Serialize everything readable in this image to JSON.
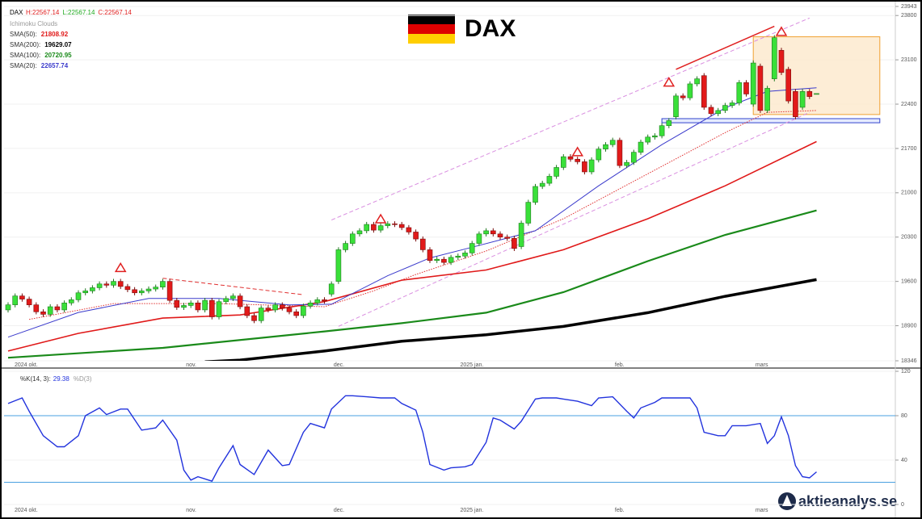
{
  "chart_data": [
    {
      "type": "candlestick",
      "title": "DAX",
      "symbol": "DAX",
      "header": [
        "H:22567.14",
        "L:22567.14",
        "C:22567.14"
      ],
      "header_colors": [
        "#e02020",
        "#22aa22",
        "#e02020"
      ],
      "up_color": "#39e039",
      "down_color": "#e21a1a",
      "categories": [
        "2024 okt.",
        null,
        null,
        null,
        null,
        null,
        null,
        null,
        null,
        null,
        null,
        null,
        null,
        null,
        null,
        null,
        null,
        null,
        null,
        null,
        null,
        null,
        null,
        null,
        null,
        null,
        "nov.",
        null,
        null,
        null,
        null,
        null,
        null,
        null,
        null,
        null,
        null,
        null,
        null,
        null,
        null,
        null,
        null,
        null,
        null,
        null,
        null,
        "dec.",
        null,
        null,
        null,
        null,
        null,
        null,
        null,
        null,
        null,
        null,
        null,
        null,
        null,
        null,
        null,
        null,
        null,
        "2025 jan.",
        null,
        null,
        null,
        null,
        null,
        null,
        null,
        null,
        null,
        null,
        null,
        null,
        null,
        null,
        null,
        null,
        null,
        null,
        null,
        null,
        null,
        "feb.",
        null,
        null,
        null,
        null,
        null,
        null,
        null,
        null,
        null,
        null,
        null,
        null,
        null,
        null,
        null,
        null,
        null,
        null,
        null,
        "mars",
        null,
        null,
        null,
        null,
        null,
        null,
        null,
        null
      ],
      "open": [
        19150,
        19230,
        19370,
        19320,
        19230,
        19120,
        19080,
        19200,
        19150,
        19260,
        19310,
        19420,
        19450,
        19500,
        19560,
        19540,
        19600,
        19520,
        19470,
        19420,
        19450,
        19480,
        19510,
        19600,
        19300,
        19190,
        19220,
        19260,
        19150,
        19300,
        19040,
        19280,
        19330,
        19370,
        19200,
        19060,
        18980,
        19180,
        19150,
        19230,
        19180,
        19120,
        19060,
        19210,
        19260,
        19310,
        19400,
        19600,
        20100,
        20200,
        20350,
        20400,
        20500,
        20410,
        20480,
        20510,
        20500,
        20450,
        20380,
        20270,
        20100,
        19930,
        19950,
        19900,
        19980,
        20000,
        20050,
        20200,
        20350,
        20400,
        20350,
        20300,
        20280,
        20150,
        20520,
        20850,
        21100,
        21150,
        21260,
        21400,
        21570,
        21530,
        21490,
        21330,
        21520,
        21690,
        21760,
        21830,
        21430,
        21480,
        21640,
        21800,
        21880,
        21900,
        22060,
        22200,
        22530,
        22500,
        22720,
        22850,
        22350,
        22250,
        22300,
        22380,
        22420,
        22740,
        22400,
        23000,
        22300,
        22800,
        23250,
        22950,
        22600,
        22350,
        22600,
        22567.14
      ],
      "high": [
        19270,
        19410,
        19410,
        19360,
        19270,
        19160,
        19240,
        19240,
        19300,
        19350,
        19460,
        19490,
        19540,
        19600,
        19600,
        19640,
        19640,
        19560,
        19510,
        19490,
        19520,
        19550,
        19640,
        19640,
        19340,
        19260,
        19300,
        19300,
        19340,
        19340,
        19320,
        19370,
        19410,
        19410,
        19240,
        19100,
        19220,
        19220,
        19270,
        19270,
        19220,
        19160,
        19250,
        19300,
        19350,
        19350,
        19600,
        20140,
        20240,
        20390,
        20440,
        20540,
        20540,
        20520,
        20550,
        20550,
        20540,
        20490,
        20420,
        20310,
        20140,
        19990,
        19990,
        20020,
        20040,
        20090,
        20240,
        20390,
        20440,
        20440,
        20390,
        20340,
        20320,
        20560,
        20890,
        21140,
        21190,
        21300,
        21440,
        21610,
        21610,
        21570,
        21530,
        21560,
        21730,
        21800,
        21870,
        21870,
        21520,
        21680,
        21840,
        21920,
        21940,
        22100,
        22180,
        22570,
        22570,
        22760,
        22840,
        22890,
        22390,
        22340,
        22420,
        22460,
        22780,
        22780,
        23090,
        23040,
        22690,
        23490,
        23290,
        22990,
        22640,
        22640,
        22640,
        22567.14
      ],
      "low": [
        19110,
        19190,
        19280,
        19190,
        19080,
        19040,
        19040,
        19110,
        19110,
        19220,
        19270,
        19380,
        19410,
        19460,
        19500,
        19500,
        19480,
        19430,
        19380,
        19380,
        19410,
        19440,
        19470,
        19260,
        19150,
        19150,
        19180,
        19110,
        19110,
        19000,
        19000,
        19240,
        19290,
        19160,
        19020,
        18940,
        18940,
        19110,
        19110,
        19140,
        19080,
        19020,
        19020,
        19170,
        19220,
        19250,
        19360,
        19560,
        20060,
        20160,
        20310,
        20360,
        20370,
        20370,
        20440,
        20460,
        20410,
        20340,
        20230,
        20060,
        19890,
        19890,
        19860,
        19860,
        19940,
        19960,
        20010,
        20160,
        20310,
        20310,
        20260,
        20240,
        20080,
        20110,
        20480,
        20810,
        21060,
        21110,
        21220,
        21360,
        21490,
        21450,
        21290,
        21290,
        21480,
        21650,
        21720,
        21390,
        21390,
        21440,
        21600,
        21760,
        21840,
        21860,
        22020,
        22160,
        22460,
        22460,
        22680,
        22310,
        22210,
        22210,
        22260,
        22340,
        22380,
        22520,
        22360,
        22260,
        22260,
        22760,
        22860,
        22410,
        22160,
        22310,
        22480,
        22567.14
      ],
      "close": [
        19230,
        19370,
        19320,
        19230,
        19120,
        19080,
        19200,
        19150,
        19260,
        19310,
        19420,
        19450,
        19500,
        19560,
        19540,
        19600,
        19520,
        19470,
        19420,
        19450,
        19480,
        19510,
        19600,
        19300,
        19190,
        19220,
        19260,
        19150,
        19300,
        19040,
        19280,
        19330,
        19370,
        19200,
        19060,
        18980,
        19180,
        19150,
        19230,
        19180,
        19120,
        19060,
        19210,
        19260,
        19310,
        19290,
        19560,
        20100,
        20200,
        20350,
        20400,
        20500,
        20410,
        20480,
        20510,
        20500,
        20450,
        20380,
        20270,
        20100,
        19930,
        19950,
        19900,
        19980,
        20000,
        20050,
        20200,
        20350,
        20400,
        20350,
        20300,
        20280,
        20120,
        20520,
        20850,
        21100,
        21150,
        21260,
        21400,
        21570,
        21530,
        21490,
        21330,
        21520,
        21690,
        21760,
        21830,
        21430,
        21480,
        21640,
        21800,
        21880,
        21900,
        22060,
        22140,
        22530,
        22500,
        22720,
        22800,
        22350,
        22250,
        22300,
        22380,
        22420,
        22740,
        22560,
        23050,
        22300,
        22650,
        23450,
        22900,
        22450,
        22200,
        22600,
        22520,
        22567.14
      ],
      "lines": [
        {
          "name": "Ichimoku Clouds",
          "color": "#e03030",
          "dotted": true,
          "width": 1,
          "x": [
            3,
            15,
            30,
            45,
            52,
            58,
            68,
            79,
            91,
            102,
            108,
            115
          ],
          "values": [
            19000,
            19250,
            19250,
            19200,
            19450,
            19710,
            20080,
            20590,
            21300,
            21950,
            22270,
            22300
          ]
        },
        {
          "name": "SMA(50):",
          "last": 21808.92,
          "color": "#e01919",
          "dotted": false,
          "width": 1.6,
          "x": [
            0,
            10,
            22,
            33,
            45,
            56,
            68,
            79,
            91,
            102,
            115
          ],
          "values": [
            18500,
            18780,
            19020,
            19070,
            19280,
            19620,
            19780,
            20100,
            20590,
            21110,
            21808.92
          ]
        },
        {
          "name": "SMA(200):",
          "last": 19629.07,
          "color": "#000000",
          "dotted": false,
          "width": 3.5,
          "x": [
            28,
            33,
            45,
            56,
            68,
            79,
            91,
            102,
            115
          ],
          "values": [
            18330,
            18357,
            18500,
            18655,
            18758,
            18889,
            19106,
            19365,
            19629.07
          ]
        },
        {
          "name": "SMA(100):",
          "last": 20720.95,
          "color": "#1a8a1a",
          "dotted": false,
          "width": 2.2,
          "x": [
            0,
            22,
            45,
            56,
            68,
            79,
            91,
            102,
            115
          ],
          "values": [
            18395,
            18550,
            18810,
            18940,
            19106,
            19430,
            19920,
            20335,
            20720.95
          ]
        },
        {
          "name": "SMA(20):",
          "last": 22657.74,
          "color": "#3b3bcc",
          "dotted": false,
          "width": 1,
          "x": [
            0,
            10,
            20,
            30,
            40,
            46,
            54,
            60,
            66,
            75,
            84,
            93,
            102,
            108,
            115
          ],
          "values": [
            18720,
            19110,
            19330,
            19330,
            19230,
            19240,
            19690,
            19970,
            20140,
            20400,
            21110,
            21760,
            22340,
            22600,
            22657.74
          ]
        }
      ],
      "signals": {
        "color": "#e02020",
        "x": [
          16,
          53,
          81,
          94,
          110
        ],
        "values": [
          19820,
          20590,
          21650,
          22750,
          23550
        ]
      },
      "trendlines": [
        {
          "color": "#e03030",
          "dash": true,
          "x": [
            22,
            42
          ],
          "values": [
            19650,
            19390
          ]
        },
        {
          "color": "#d98ee0",
          "dash": true,
          "x": [
            46,
            114
          ],
          "values": [
            20570,
            23760
          ]
        },
        {
          "color": "#d98ee0",
          "dash": true,
          "x": [
            47,
            114
          ],
          "values": [
            18890,
            22270
          ]
        },
        {
          "color": "#e02020",
          "dash": false,
          "x": [
            95,
            109
          ],
          "values": [
            22950,
            23630
          ]
        }
      ],
      "zones": [
        {
          "fill": "#fde9cc",
          "stroke": "#f0a030",
          "x": [
            106,
            124
          ],
          "values": [
            22236,
            23464
          ]
        },
        {
          "fill": "#dfe6ff",
          "stroke": "#3344cc",
          "x": [
            93,
            124
          ],
          "values": [
            22106,
            22171
          ]
        }
      ],
      "ylim": [
        18346,
        23943
      ],
      "yticks": [
        18346,
        18900,
        19600,
        20300,
        21000,
        21700,
        22400,
        23100,
        23800,
        23943
      ],
      "grid": true
    },
    {
      "type": "line",
      "series": [
        {
          "name": "%K(14, 3):",
          "last": 29.38,
          "color": "#2233dd",
          "x": [
            0,
            2,
            3,
            5,
            7,
            8,
            10,
            11,
            13,
            14,
            16,
            17,
            19,
            21,
            22,
            24,
            25,
            26,
            27,
            29,
            30,
            32,
            33,
            35,
            37,
            39,
            40,
            42,
            43,
            45,
            46,
            48,
            49,
            51,
            53,
            55,
            56,
            58,
            59,
            60,
            62,
            63,
            65,
            66,
            68,
            69,
            70,
            72,
            73,
            75,
            76,
            78,
            79,
            81,
            83,
            84,
            86,
            88,
            89,
            90,
            92,
            93,
            95,
            97,
            98,
            99,
            101,
            102,
            103,
            105,
            107,
            108,
            109,
            110,
            111,
            112,
            113,
            114,
            115
          ],
          "values": [
            91,
            96,
            84,
            62,
            52,
            52,
            62,
            80,
            87,
            81,
            86,
            86,
            67,
            69,
            76,
            58,
            31,
            22,
            25,
            21,
            33,
            53,
            36,
            27,
            49,
            35,
            36,
            65,
            73,
            69,
            86,
            98,
            98,
            97,
            96,
            96,
            91,
            85,
            65,
            36,
            31,
            33,
            34,
            36,
            56,
            78,
            76,
            68,
            75,
            95,
            96,
            96,
            95,
            93,
            89,
            96,
            97,
            84,
            78,
            87,
            92,
            96,
            96,
            96,
            87,
            65,
            62,
            62,
            71,
            71,
            73,
            55,
            62,
            79,
            62,
            35,
            25,
            24,
            29.38
          ]
        }
      ],
      "extra_label": "%D(3)",
      "hlines": [
        80,
        20
      ],
      "hline_color": "#4aa0e0",
      "ylim": [
        0,
        120
      ],
      "yticks": [
        0,
        40,
        80,
        120
      ],
      "grid": true
    }
  ],
  "logo": "aktieanalys.se"
}
